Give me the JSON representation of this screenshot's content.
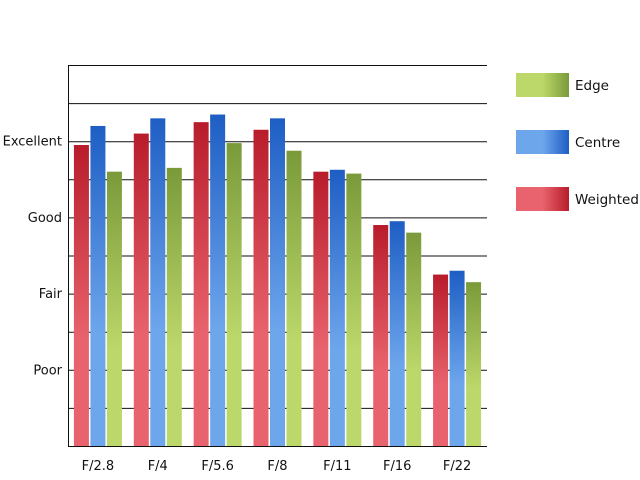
{
  "chart_data": {
    "type": "bar",
    "categories": [
      "F/2.8",
      "F/4",
      "F/5.6",
      "F/8",
      "F/11",
      "F/16",
      "F/22"
    ],
    "series": [
      {
        "name": "Weighted",
        "values": [
          7.9,
          8.2,
          8.5,
          8.3,
          7.2,
          5.8,
          4.5
        ]
      },
      {
        "name": "Centre",
        "values": [
          8.4,
          8.6,
          8.7,
          8.6,
          7.25,
          5.9,
          4.6
        ]
      },
      {
        "name": "Edge",
        "values": [
          7.2,
          7.3,
          7.95,
          7.75,
          7.15,
          5.6,
          4.3
        ]
      }
    ],
    "legend_order": [
      "Edge",
      "Centre",
      "Weighted"
    ],
    "ylim": [
      0,
      10
    ],
    "y_ticks": [
      {
        "value": 2,
        "label": "Poor"
      },
      {
        "value": 4,
        "label": "Fair"
      },
      {
        "value": 6,
        "label": "Good"
      },
      {
        "value": 8,
        "label": "Excellent"
      }
    ],
    "gridlines": [
      1,
      2,
      3,
      4,
      5,
      6,
      7,
      8,
      9,
      10
    ],
    "grid": true,
    "legend_position": "right",
    "title": "",
    "xlabel": "",
    "ylabel": "",
    "colors": {
      "Weighted": {
        "light": "#e8636d",
        "dark": "#b81c2b"
      },
      "Centre": {
        "light": "#6ea6ec",
        "dark": "#1e5ec4"
      },
      "Edge": {
        "light": "#bcd86a",
        "dark": "#7a9a3a"
      }
    }
  }
}
